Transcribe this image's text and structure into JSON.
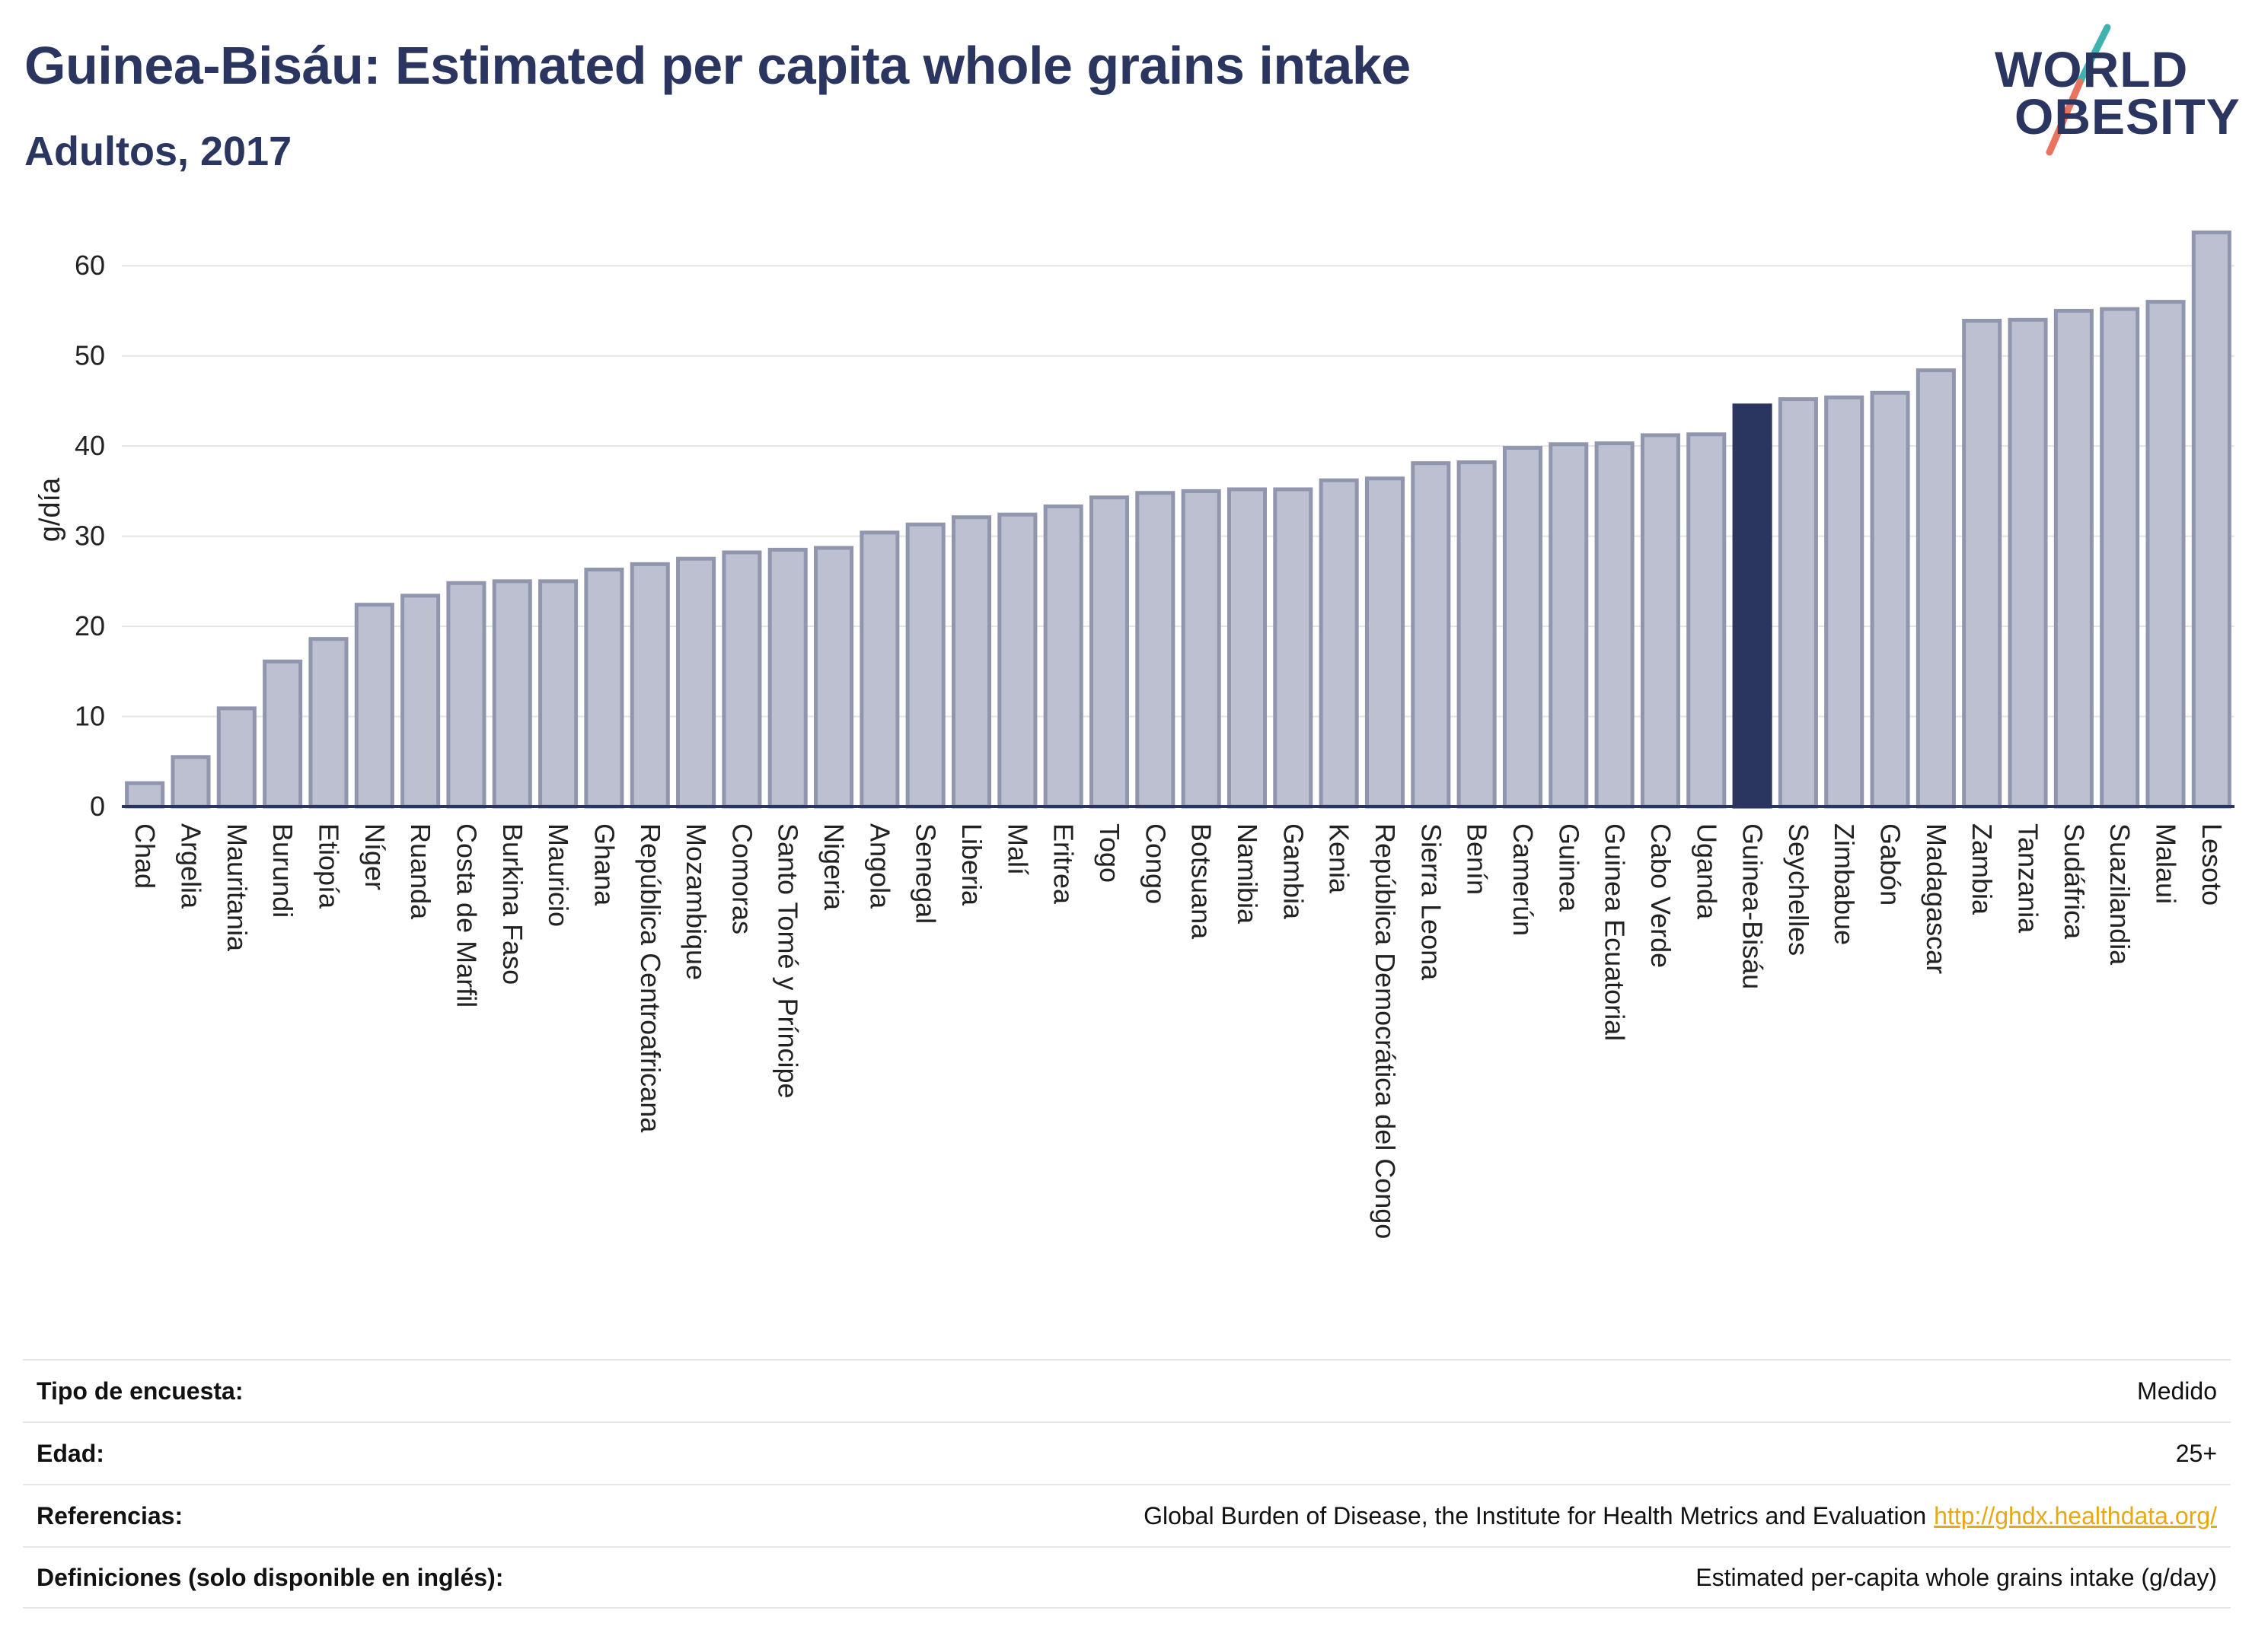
{
  "header": {
    "title": "Guinea-Bisáu: Estimated per capita whole grains intake",
    "subtitle": "Adultos, 2017"
  },
  "logo": {
    "line1": "WORLD",
    "line2": "OBESITY"
  },
  "colors": {
    "title": "#2a3560",
    "bar": "#bcc0d0",
    "bar_edge": "#9096ad",
    "highlight": "#2a3560",
    "logo_teal": "#3fb3b0",
    "logo_coral": "#e8735f",
    "link": "#e6a817"
  },
  "chart_data": {
    "type": "bar",
    "ylabel": "g/día",
    "ylim": [
      0,
      65
    ],
    "yticks": [
      0,
      10,
      20,
      30,
      40,
      50,
      60
    ],
    "grid": true,
    "highlight": "Guinea-Bisáu",
    "categories": [
      "Chad",
      "Argelia",
      "Mauritania",
      "Burundi",
      "Etiopía",
      "Níger",
      "Ruanda",
      "Costa de Marfil",
      "Burkina Faso",
      "Mauricio",
      "Ghana",
      "República Centroafricana",
      "Mozambique",
      "Comoras",
      "Santo Tomé y Príncipe",
      "Nigeria",
      "Angola",
      "Senegal",
      "Liberia",
      "Malí",
      "Eritrea",
      "Togo",
      "Congo",
      "Botsuana",
      "Namibia",
      "Gambia",
      "Kenia",
      "República Democrática del Congo",
      "Sierra Leona",
      "Benín",
      "Camerún",
      "Guinea",
      "Guinea Ecuatorial",
      "Cabo Verde",
      "Uganda",
      "Guinea-Bisáu",
      "Seychelles",
      "Zimbabue",
      "Gabón",
      "Madagascar",
      "Zambia",
      "Tanzania",
      "Sudáfrica",
      "Suazilandia",
      "Malaui",
      "Lesoto"
    ],
    "values": [
      2.6,
      5.5,
      10.9,
      16.1,
      18.6,
      22.4,
      23.4,
      24.8,
      25.0,
      25.0,
      26.3,
      26.9,
      27.5,
      28.2,
      28.5,
      28.7,
      30.4,
      31.3,
      32.1,
      32.4,
      33.3,
      34.3,
      34.8,
      35.0,
      35.2,
      35.2,
      36.2,
      36.4,
      38.1,
      38.2,
      39.8,
      40.2,
      40.3,
      41.2,
      41.3,
      44.5,
      45.2,
      45.4,
      45.9,
      48.4,
      53.9,
      54.0,
      55.0,
      55.2,
      56.0,
      63.7
    ]
  },
  "info": [
    {
      "key": "Tipo de encuesta:",
      "value": "Medido",
      "link": ""
    },
    {
      "key": "Edad:",
      "value": "25+",
      "link": ""
    },
    {
      "key": "Referencias:",
      "value": "Global Burden of Disease, the Institute for Health Metrics and Evaluation",
      "link": "http://ghdx.healthdata.org/"
    },
    {
      "key": "Definiciones (solo disponible en inglés):",
      "value": "Estimated per-capita whole grains intake (g/day)",
      "link": ""
    }
  ]
}
